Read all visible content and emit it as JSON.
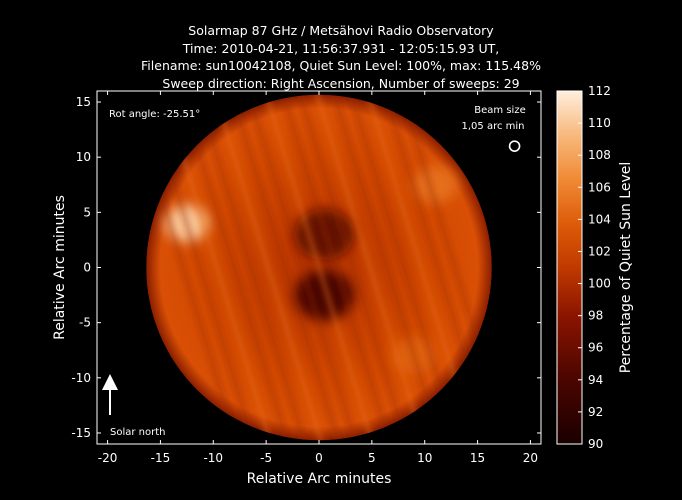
{
  "title_lines": [
    "Solarmap 87 GHz / Metsähovi Radio Observatory",
    "Time: 2010-04-21, 11:56:37.931 - 12:05:15.93 UT,",
    "Filename: sun10042108, Quiet Sun Level: 100%, max: 115.48%",
    "Sweep direction: Right Ascension, Number of sweeps: 29"
  ],
  "annotations": {
    "rot_angle": "Rot angle: -25.51°",
    "beam_size_line1": "Beam size",
    "beam_size_line2": "1,05 arc min",
    "solar_north": "Solar north"
  },
  "colorbar": {
    "label": "Percentage of Quiet Sun Level",
    "range": [
      90,
      112
    ],
    "ticks": [
      90,
      92,
      94,
      96,
      98,
      100,
      102,
      104,
      106,
      108,
      110,
      112
    ],
    "colors": {
      "low": "#1a0000",
      "mid_low": "#8a1400",
      "mid": "#d85500",
      "mid_high": "#f29a45",
      "high": "#ffe9cc"
    }
  },
  "chart_data": {
    "type": "heatmap",
    "title": "Solarmap 87 GHz / Metsähovi Radio Observatory",
    "xlabel": "Relative Arc minutes",
    "ylabel": "Relative Arc minutes",
    "xlim": [
      -21,
      21
    ],
    "ylim": [
      -16,
      16
    ],
    "xticks": [
      -20,
      -15,
      -10,
      -5,
      0,
      5,
      10,
      15,
      20
    ],
    "yticks": [
      -15,
      -10,
      -5,
      0,
      5,
      10,
      15
    ],
    "solar_disk": {
      "center": [
        0,
        0
      ],
      "radius_arcmin": 16
    },
    "beam": {
      "center": [
        18.5,
        11
      ],
      "diameter_arcmin": 1.05
    },
    "features": [
      {
        "name": "bright region east limb",
        "x": -12.5,
        "y": 4,
        "level": 110
      },
      {
        "name": "bright region north-west",
        "x": 11,
        "y": 7.5,
        "level": 105
      },
      {
        "name": "bright region south-west",
        "x": 9,
        "y": -8,
        "level": 104
      },
      {
        "name": "dark region center",
        "x": 0.5,
        "y": -2.5,
        "level": 93
      },
      {
        "name": "dark region north",
        "x": 0.5,
        "y": 3,
        "level": 95
      }
    ],
    "colorbar_range": [
      90,
      112
    ]
  }
}
